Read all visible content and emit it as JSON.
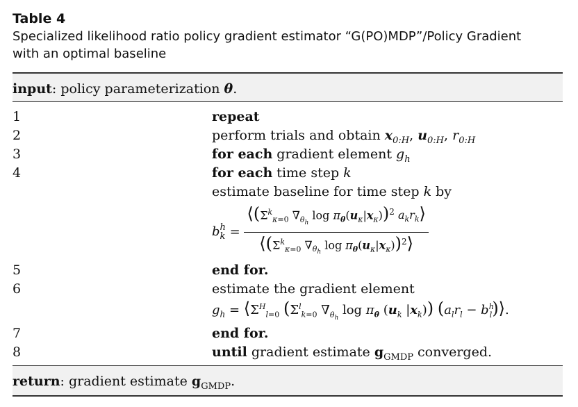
{
  "table": {
    "label": "Table 4",
    "caption_line1": "Specialized likelihood ratio policy gradient estimator “G(PO)MDP”/Policy Gradient",
    "caption_line2": "with an optimal baseline"
  },
  "input_row": {
    "keyword": "input",
    "text": ": policy parameterization ",
    "symbol": "θ",
    "end": "."
  },
  "steps": [
    {
      "num": "1",
      "keyword": "repeat",
      "text": ""
    },
    {
      "num": "2",
      "keyword": "",
      "text": "perform trials and obtain "
    },
    {
      "num": "3",
      "keyword": "for each",
      "text": " gradient element "
    },
    {
      "num": "4",
      "keyword": "for each",
      "text": " time step "
    },
    {
      "num": "",
      "keyword": "",
      "text": "estimate baseline for time step "
    },
    {
      "num": "5",
      "keyword": "end for.",
      "text": ""
    },
    {
      "num": "6",
      "keyword": "",
      "text": "estimate the gradient element"
    },
    {
      "num": "7",
      "keyword": "end for.",
      "text": ""
    },
    {
      "num": "8",
      "keyword": "until",
      "text": " gradient estimate "
    }
  ],
  "step2_vars": {
    "x": "x",
    "u": "u",
    "r": "r",
    "range": "0:H"
  },
  "step3_var": {
    "g": "g",
    "h": "h"
  },
  "step4_var": "k",
  "step4b": {
    "k": "k",
    "by": " by"
  },
  "step8": {
    "g": "g",
    "sub": "GMDP",
    "tail": " converged."
  },
  "baseline_formula": {
    "lhs": "b",
    "lhs_sup": "h",
    "lhs_sub": "k",
    "numerator": "⟨(Σ_{κ=0}^{k} ∇_{θ_h} log π_θ(u_κ|x_κ))² a_k r_k⟩",
    "denominator": "⟨(Σ_{κ=0}^{k} ∇_{θ_h} log π_θ(u_κ|x_κ))²⟩"
  },
  "gradient_formula": {
    "text": "g_h = ⟨Σ_{l=0}^{H} (Σ_{k=0}^{l} ∇_{θ_h} log π_θ(u_k|x_k)) (a_l r_l − b_l^h)⟩."
  },
  "return_row": {
    "keyword": "return",
    "text": ": gradient estimate ",
    "g": "g",
    "sub": "GMDP",
    "end": "."
  }
}
